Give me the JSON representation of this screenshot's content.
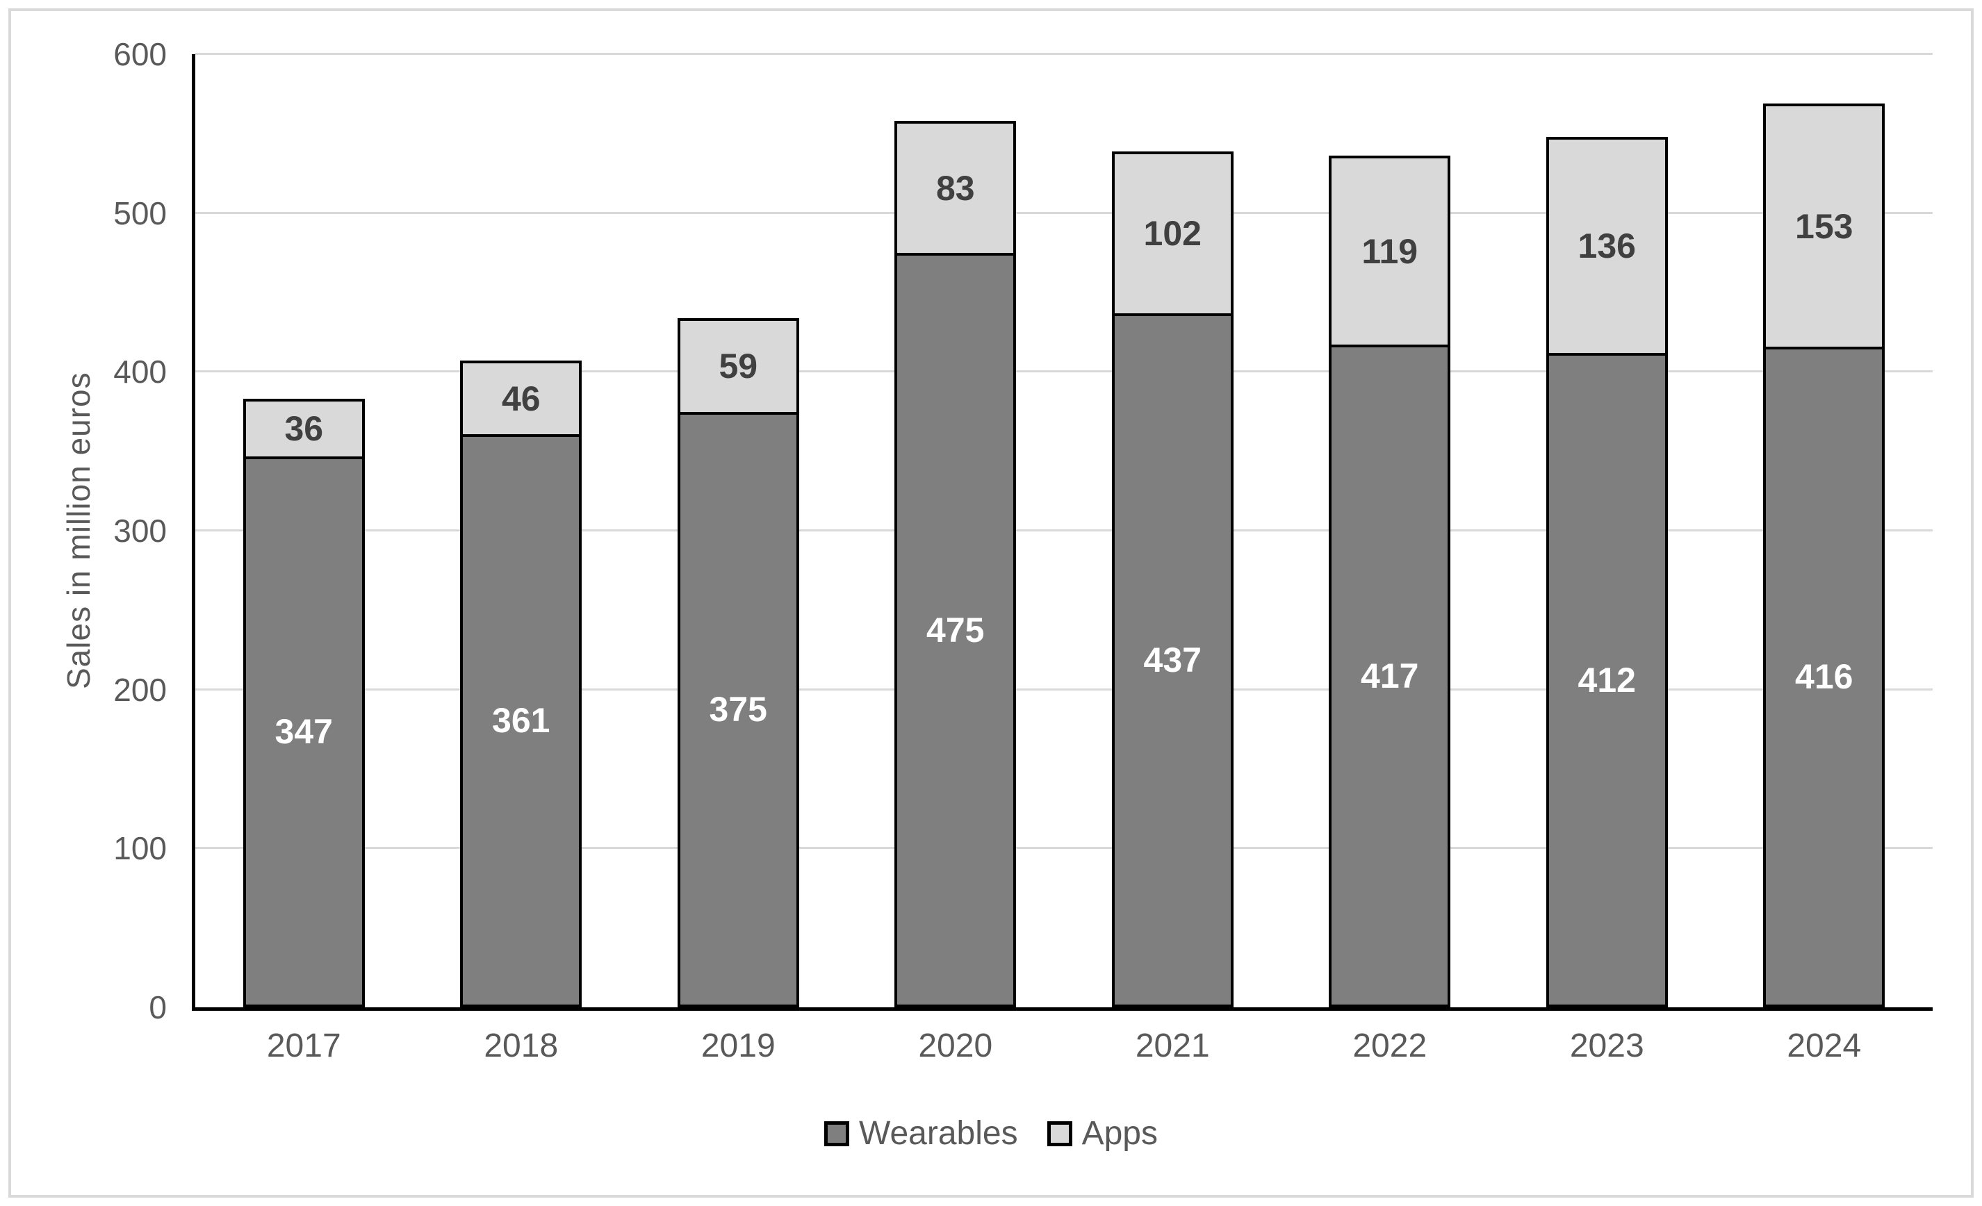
{
  "chart": {
    "y_axis_title": "Sales in million euros"
  },
  "chart_data": {
    "type": "bar",
    "stacked": true,
    "title": "",
    "xlabel": "",
    "ylabel": "Sales in million euros",
    "categories": [
      "2017",
      "2018",
      "2019",
      "2020",
      "2021",
      "2022",
      "2023",
      "2024"
    ],
    "series": [
      {
        "name": "Wearables",
        "values": [
          347,
          361,
          375,
          475,
          437,
          417,
          412,
          416
        ],
        "color": "#7f7f7f",
        "label_color": "#ffffff"
      },
      {
        "name": "Apps",
        "values": [
          36,
          46,
          59,
          83,
          102,
          119,
          136,
          153
        ],
        "color": "#d9d9d9",
        "label_color": "#404040"
      }
    ],
    "totals": [
      383,
      407,
      434,
      558,
      539,
      536,
      548,
      569
    ],
    "ylim": [
      0,
      600
    ],
    "ytick_step": 100,
    "ytick_labels": [
      "0",
      "100",
      "200",
      "300",
      "400",
      "500",
      "600"
    ],
    "grid": "horizontal",
    "data_label_position": "center",
    "legend_position": "bottom",
    "legend_entries": [
      "Wearables",
      "Apps"
    ]
  },
  "style_colors": {
    "background": "#ffffff",
    "frame_border": "#d9d9d9",
    "gridline": "#d9d9d9",
    "axis_line": "#000000",
    "bar_border": "#000000",
    "axis_text": "#595959",
    "wearables_fill": "#7f7f7f",
    "apps_fill": "#d9d9d9",
    "wearables_label_text": "#ffffff",
    "apps_label_text": "#404040"
  }
}
